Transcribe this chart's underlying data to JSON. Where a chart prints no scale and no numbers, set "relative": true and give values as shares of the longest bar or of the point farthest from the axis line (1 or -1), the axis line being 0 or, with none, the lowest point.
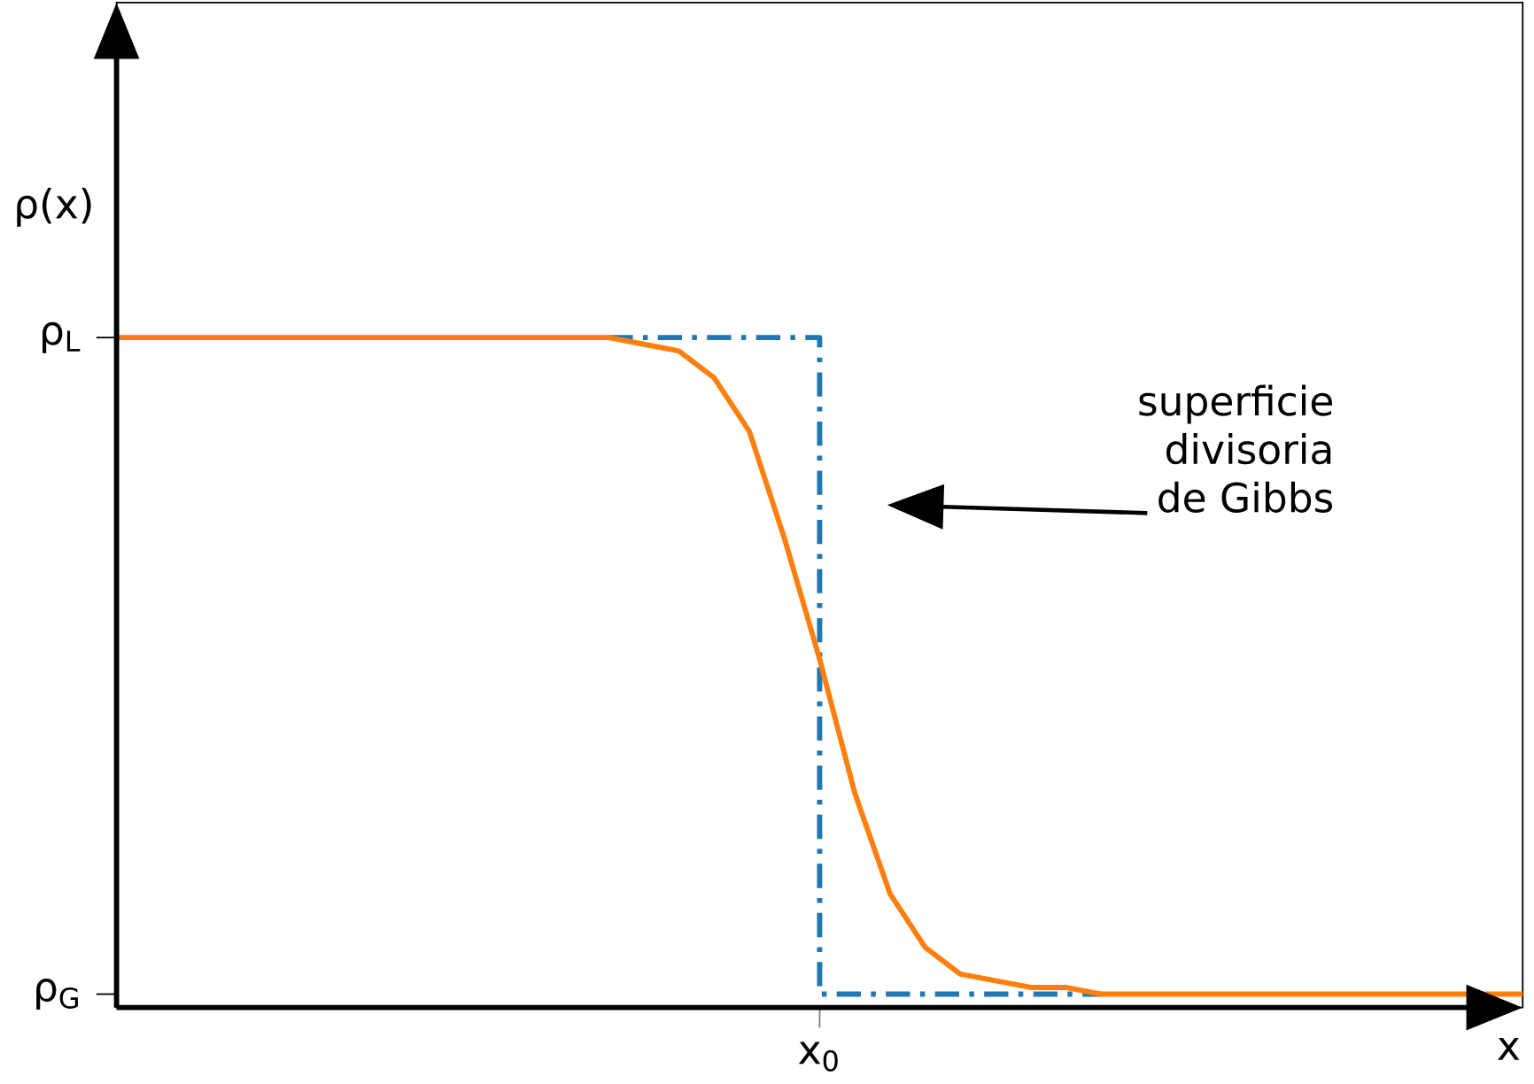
{
  "chart_data": {
    "type": "line",
    "relative": true,
    "xlabel": "x",
    "ylabel": "ρ(x)",
    "categories": [
      null,
      null,
      null,
      null,
      null,
      null,
      null,
      null,
      null,
      null,
      null,
      null,
      null,
      null,
      null,
      null,
      null,
      null,
      null,
      null,
      null,
      null,
      null,
      null,
      null,
      null,
      null,
      null,
      null,
      null,
      null,
      null,
      null,
      null,
      null,
      null,
      null,
      null,
      null,
      null,
      null
    ],
    "series": [
      {
        "type": "step",
        "color": "#1f77b4",
        "line_style": "dashdot",
        "values": [
          null,
          null,
          null,
          null,
          null,
          null,
          null,
          null,
          null,
          null,
          null,
          null,
          null,
          null,
          1,
          1,
          1,
          1,
          1,
          1,
          0.02,
          0.02,
          0.02,
          0.02,
          0.02,
          0.02,
          0.02,
          0.02,
          0.02,
          null,
          null,
          null,
          null,
          null,
          null,
          null,
          null,
          null,
          null,
          null,
          null
        ]
      },
      {
        "color": "#ff7f0e",
        "line_style": "solid",
        "values": [
          1,
          1,
          1,
          1,
          1,
          1,
          1,
          1,
          1,
          1,
          1,
          1,
          1,
          1,
          1,
          0.99,
          0.98,
          0.94,
          0.86,
          0.7,
          0.52,
          0.32,
          0.17,
          0.09,
          0.05,
          0.04,
          0.03,
          0.03,
          0.02,
          0.02,
          0.02,
          0.02,
          0.02,
          0.02,
          0.02,
          0.02,
          0.02,
          0.02,
          0.02,
          0.02,
          0.02
        ]
      }
    ],
    "annotations": [
      "superficie\ndivisoria\nde Gibbs",
      "ρ$_{L}$",
      "ρ$_{G}$",
      "x$_{0}$"
    ]
  }
}
